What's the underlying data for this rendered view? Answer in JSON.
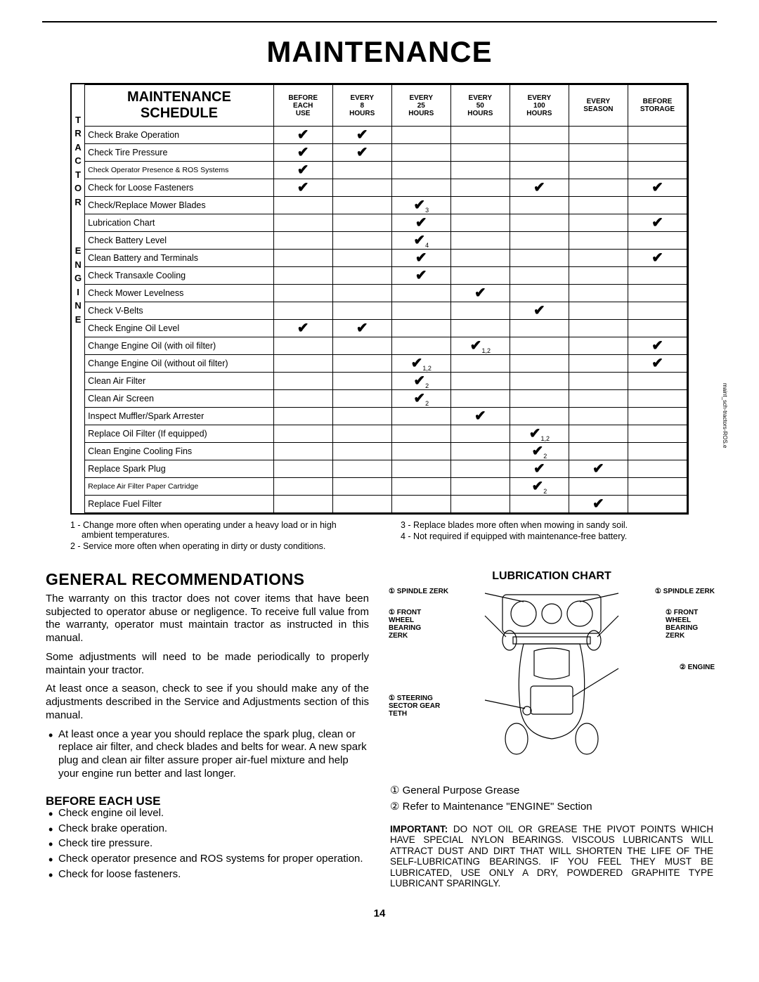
{
  "page_title": "MAINTENANCE",
  "page_number": "14",
  "side_text": "maint_sch-tractors-ROS.e",
  "schedule": {
    "title_top": "MAINTENANCE",
    "title_bottom": "SCHEDULE",
    "vlabel_tractor": "TRACTOR",
    "vlabel_engine": "ENGINE",
    "columns": [
      {
        "l1": "BEFORE",
        "l2": "EACH",
        "l3": "USE"
      },
      {
        "l1": "EVERY",
        "l2": "8",
        "l3": "HOURS"
      },
      {
        "l1": "EVERY",
        "l2": "25",
        "l3": "HOURS"
      },
      {
        "l1": "EVERY",
        "l2": "50",
        "l3": "HOURS"
      },
      {
        "l1": "EVERY",
        "l2": "100",
        "l3": "HOURS"
      },
      {
        "l1": "EVERY",
        "l2": "SEASON",
        "l3": ""
      },
      {
        "l1": "BEFORE",
        "l2": "STORAGE",
        "l3": ""
      }
    ],
    "rows": [
      {
        "task": "Check Brake Operation",
        "marks": [
          "✔",
          "✔",
          "",
          "",
          "",
          "",
          ""
        ]
      },
      {
        "task": "Check Tire Pressure",
        "marks": [
          "✔",
          "✔",
          "",
          "",
          "",
          "",
          ""
        ]
      },
      {
        "task": "Check Operator Presence & ROS Systems",
        "marks": [
          "✔",
          "",
          "",
          "",
          "",
          "",
          ""
        ],
        "small": true
      },
      {
        "task": "Check for Loose Fasteners",
        "marks": [
          "✔",
          "",
          "",
          "",
          "✔",
          "",
          "✔"
        ]
      },
      {
        "task": "Check/Replace Mower Blades",
        "marks": [
          "",
          "",
          "✔",
          "",
          "",
          "",
          ""
        ],
        "subs": [
          "",
          "",
          "3",
          "",
          "",
          "",
          ""
        ]
      },
      {
        "task": "Lubrication Chart",
        "marks": [
          "",
          "",
          "✔",
          "",
          "",
          "",
          "✔"
        ]
      },
      {
        "task": "Check Battery Level",
        "marks": [
          "",
          "",
          "✔",
          "",
          "",
          "",
          ""
        ],
        "subs": [
          "",
          "",
          "4",
          "",
          "",
          "",
          ""
        ]
      },
      {
        "task": "Clean Battery and Terminals",
        "marks": [
          "",
          "",
          "✔",
          "",
          "",
          "",
          "✔"
        ]
      },
      {
        "task": "Check Transaxle Cooling",
        "marks": [
          "",
          "",
          "✔",
          "",
          "",
          "",
          ""
        ]
      },
      {
        "task": "Check Mower Levelness",
        "marks": [
          "",
          "",
          "",
          "✔",
          "",
          "",
          ""
        ]
      },
      {
        "task": "Check V-Belts",
        "marks": [
          "",
          "",
          "",
          "",
          "✔",
          "",
          ""
        ]
      },
      {
        "task": "Check Engine Oil Level",
        "marks": [
          "✔",
          "✔",
          "",
          "",
          "",
          "",
          ""
        ]
      },
      {
        "task": "Change Engine Oil (with oil filter)",
        "marks": [
          "",
          "",
          "",
          "✔",
          "",
          "",
          "✔"
        ],
        "subs": [
          "",
          "",
          "",
          "1,2",
          "",
          "",
          ""
        ]
      },
      {
        "task": "Change Engine Oil (without oil filter)",
        "marks": [
          "",
          "",
          "✔",
          "",
          "",
          "",
          "✔"
        ],
        "subs": [
          "",
          "",
          "1,2",
          "",
          "",
          "",
          ""
        ]
      },
      {
        "task": "Clean Air Filter",
        "marks": [
          "",
          "",
          "✔",
          "",
          "",
          "",
          ""
        ],
        "subs": [
          "",
          "",
          "2",
          "",
          "",
          "",
          ""
        ]
      },
      {
        "task": "Clean Air Screen",
        "marks": [
          "",
          "",
          "✔",
          "",
          "",
          "",
          ""
        ],
        "subs": [
          "",
          "",
          "2",
          "",
          "",
          "",
          ""
        ]
      },
      {
        "task": "Inspect Muffler/Spark Arrester",
        "marks": [
          "",
          "",
          "",
          "✔",
          "",
          "",
          ""
        ]
      },
      {
        "task": "Replace Oil Filter (If equipped)",
        "marks": [
          "",
          "",
          "",
          "",
          "✔",
          "",
          ""
        ],
        "subs": [
          "",
          "",
          "",
          "",
          "1,2",
          "",
          ""
        ]
      },
      {
        "task": "Clean Engine Cooling Fins",
        "marks": [
          "",
          "",
          "",
          "",
          "✔",
          "",
          ""
        ],
        "subs": [
          "",
          "",
          "",
          "",
          "2",
          "",
          ""
        ]
      },
      {
        "task": "Replace Spark Plug",
        "marks": [
          "",
          "",
          "",
          "",
          "✔",
          "✔",
          ""
        ]
      },
      {
        "task": "Replace Air Filter Paper Cartridge",
        "marks": [
          "",
          "",
          "",
          "",
          "✔",
          "",
          ""
        ],
        "subs": [
          "",
          "",
          "",
          "",
          "2",
          "",
          ""
        ],
        "small": true
      },
      {
        "task": "Replace Fuel Filter",
        "marks": [
          "",
          "",
          "",
          "",
          "",
          "✔",
          ""
        ]
      }
    ]
  },
  "footnotes": {
    "left": [
      "1 - Change more often when operating under a heavy load or in high ambient temperatures.",
      "2 - Service more often when operating in dirty or dusty conditions."
    ],
    "right": [
      "3 - Replace blades more often when mowing in sandy soil.",
      "4 - Not required if equipped with maintenance-free battery."
    ]
  },
  "general": {
    "heading": "GENERAL RECOMMENDATIONS",
    "p1": "The warranty on this tractor does not cover items that have been subjected to operator abuse or negligence. To receive full value from the warranty, operator must maintain tractor as instructed in this manual.",
    "p2": "Some adjustments will need to be made periodically to properly maintain your tractor.",
    "p3": "At least once a season, check to see if you should make any of the adjustments described in the Service and Adjustments section of this manual.",
    "b1": "At least once a year you should replace the spark plug, clean or replace air filter, and check blades and belts for wear.  A new spark plug and clean air filter assure proper air-fuel mixture and help your engine run better and last longer."
  },
  "before": {
    "heading": "BEFORE EACH USE",
    "items": [
      "Check engine oil level.",
      "Check brake operation.",
      "Check tire pressure.",
      "Check operator presence and ROS systems for proper operation.",
      "Check for loose fasteners."
    ]
  },
  "lubrication": {
    "title": "LUBRICATION CHART",
    "labels": {
      "spindle_l": "① SPINDLE ZERK",
      "spindle_r": "① SPINDLE ZERK",
      "front_l": "① FRONT WHEEL BEARING ZERK",
      "front_r": "① FRONT WHEEL BEARING ZERK",
      "engine": "② ENGINE",
      "steering": "① STEERING SECTOR GEAR TETH"
    },
    "legend1": "① General Purpose Grease",
    "legend2": "② Refer to Maintenance \"ENGINE\" Section",
    "important_label": "IMPORTANT:",
    "important": "  DO NOT OIL OR GREASE THE PIVOT POINTS WHICH HAVE SPECIAL NYLON BEARINGS.  VISCOUS LUBRICANTS WILL ATTRACT DUST AND DIRT THAT WILL SHORTEN THE LIFE OF THE SELF-LUBRICATING BEARINGS.  IF YOU FEEL THEY MUST BE LUBRICATED, USE ONLY A DRY, POWDERED GRAPHITE TYPE LUBRICANT SPARINGLY."
  }
}
